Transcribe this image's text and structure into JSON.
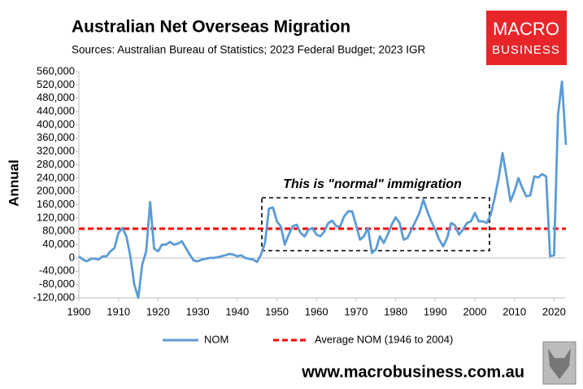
{
  "chart_data": {
    "type": "line",
    "title": "Australian Net Overseas Migration",
    "subtitle": "Sources: Australian Bureau of Statistics; 2023 Federal Budget; 2023 IGR",
    "ylabel": "Annual",
    "annotation": "This is \"normal\" immigration",
    "logo": [
      "MACRO",
      "BUSINESS"
    ],
    "footer": "www.macrobusiness.com.au",
    "x": [
      1900,
      1901,
      1902,
      1903,
      1904,
      1905,
      1906,
      1907,
      1908,
      1909,
      1910,
      1911,
      1912,
      1913,
      1914,
      1915,
      1916,
      1917,
      1918,
      1919,
      1920,
      1921,
      1922,
      1923,
      1924,
      1925,
      1926,
      1927,
      1928,
      1929,
      1930,
      1931,
      1932,
      1933,
      1934,
      1935,
      1936,
      1937,
      1938,
      1939,
      1940,
      1941,
      1942,
      1943,
      1944,
      1945,
      1946,
      1947,
      1948,
      1949,
      1950,
      1951,
      1952,
      1953,
      1954,
      1955,
      1956,
      1957,
      1958,
      1959,
      1960,
      1961,
      1962,
      1963,
      1964,
      1965,
      1966,
      1967,
      1968,
      1969,
      1970,
      1971,
      1972,
      1973,
      1974,
      1975,
      1976,
      1977,
      1978,
      1979,
      1980,
      1981,
      1982,
      1983,
      1984,
      1985,
      1986,
      1987,
      1988,
      1989,
      1990,
      1991,
      1992,
      1993,
      1994,
      1995,
      1996,
      1997,
      1998,
      1999,
      2000,
      2001,
      2002,
      2003,
      2004,
      2005,
      2006,
      2007,
      2008,
      2009,
      2010,
      2011,
      2012,
      2013,
      2014,
      2015,
      2016,
      2017,
      2018,
      2019,
      2020,
      2021,
      2022,
      2023
    ],
    "series": [
      {
        "name": "NOM",
        "color": "#5b9bd5",
        "values": [
          5000,
          -5000,
          -10000,
          -3000,
          -2000,
          -5000,
          5000,
          5000,
          20000,
          30000,
          75000,
          90000,
          65000,
          5000,
          -80000,
          -120000,
          -20000,
          20000,
          168000,
          28000,
          20000,
          40000,
          40000,
          48000,
          40000,
          43000,
          50000,
          30000,
          10000,
          -8000,
          -10000,
          -5000,
          -3000,
          0,
          0,
          2000,
          5000,
          8000,
          12000,
          10000,
          5000,
          8000,
          0,
          -3000,
          -5000,
          -12000,
          10000,
          45000,
          148000,
          152000,
          110000,
          95000,
          40000,
          70000,
          95000,
          100000,
          75000,
          65000,
          85000,
          90000,
          70000,
          65000,
          80000,
          105000,
          112000,
          95000,
          95000,
          125000,
          140000,
          140000,
          100000,
          55000,
          65000,
          90000,
          15000,
          25000,
          65000,
          45000,
          70000,
          100000,
          122000,
          105000,
          55000,
          60000,
          85000,
          110000,
          135000,
          175000,
          140000,
          110000,
          85000,
          55000,
          35000,
          60000,
          105000,
          98000,
          70000,
          85000,
          105000,
          110000,
          135000,
          110000,
          110000,
          105000,
          130000,
          180000,
          240000,
          315000,
          245000,
          170000,
          200000,
          240000,
          210000,
          185000,
          188000,
          245000,
          242000,
          252000,
          245000,
          5000,
          8000,
          430000,
          530000,
          340000
        ]
      }
    ],
    "average": {
      "name": "Average NOM (1946 to 2004)",
      "color": "#ff0000",
      "value": 88000
    },
    "xlim": [
      1900,
      2023
    ],
    "ylim": [
      -120000,
      560000
    ],
    "xticks": [
      1900,
      1910,
      1920,
      1930,
      1940,
      1950,
      1960,
      1970,
      1980,
      1990,
      2000,
      2010,
      2020
    ],
    "yticks": [
      {
        "value": -120000,
        "label": "-120,000"
      },
      {
        "value": -80000,
        "label": "-80,000"
      },
      {
        "value": -40000,
        "label": "-40,000"
      },
      0,
      {
        "value": 40000,
        "label": "40,000"
      },
      {
        "value": 80000,
        "label": "80,000"
      },
      {
        "value": 120000,
        "label": "120,000"
      },
      {
        "value": 160000,
        "label": "160,000"
      },
      {
        "value": 200000,
        "label": "200,000"
      },
      {
        "value": 240000,
        "label": "240,000"
      },
      {
        "value": 280000,
        "label": "280,000"
      },
      {
        "value": 320000,
        "label": "320,000"
      },
      {
        "value": 360000,
        "label": "360,000"
      },
      {
        "value": 400000,
        "label": "400,000"
      },
      {
        "value": 440000,
        "label": "440,000"
      },
      {
        "value": 480000,
        "label": "480,000"
      },
      {
        "value": 520000,
        "label": "520,000"
      },
      {
        "value": 560000,
        "label": "560,000"
      }
    ],
    "grid": false
  }
}
